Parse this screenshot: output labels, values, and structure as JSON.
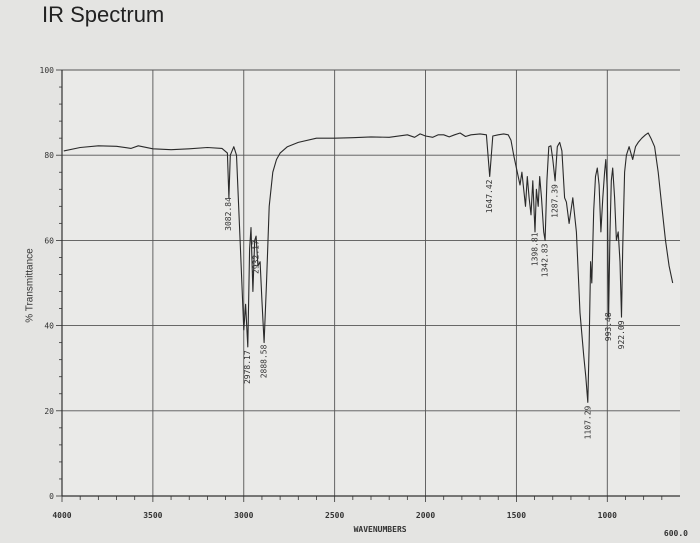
{
  "chart_data": {
    "type": "line",
    "title": "IR Spectrum",
    "xlabel": "WAVENUMBERS",
    "ylabel": "% Transmittance",
    "x_reversed": true,
    "xlim": [
      4000,
      600
    ],
    "ylim": [
      0,
      100
    ],
    "x_ticks": [
      {
        "value": 4000,
        "label": "4000"
      },
      {
        "value": 3500,
        "label": "3500"
      },
      {
        "value": 3000,
        "label": "3000"
      },
      {
        "value": 2500,
        "label": "2500"
      },
      {
        "value": 2000,
        "label": "2000"
      },
      {
        "value": 1500,
        "label": "1500"
      },
      {
        "value": 1000,
        "label": "1000"
      }
    ],
    "x_end_label": "600.0",
    "y_ticks": [
      {
        "value": 0,
        "label": "0"
      },
      {
        "value": 20,
        "label": "20"
      },
      {
        "value": 40,
        "label": "40"
      },
      {
        "value": 60,
        "label": "60"
      },
      {
        "value": 80,
        "label": "80"
      },
      {
        "value": 100,
        "label": "100"
      }
    ],
    "grid": true,
    "series": [
      {
        "points": [
          [
            3990,
            81
          ],
          [
            3900,
            81.8
          ],
          [
            3800,
            82.2
          ],
          [
            3700,
            82.1
          ],
          [
            3620,
            81.6
          ],
          [
            3580,
            82.2
          ],
          [
            3500,
            81.5
          ],
          [
            3400,
            81.3
          ],
          [
            3300,
            81.5
          ],
          [
            3200,
            81.8
          ],
          [
            3120,
            81.6
          ],
          [
            3090,
            80.5
          ],
          [
            3082,
            70
          ],
          [
            3074,
            80
          ],
          [
            3055,
            82
          ],
          [
            3040,
            80
          ],
          [
            3020,
            60
          ],
          [
            3000,
            39
          ],
          [
            2990,
            45
          ],
          [
            2978,
            35
          ],
          [
            2968,
            58
          ],
          [
            2960,
            63
          ],
          [
            2950,
            48
          ],
          [
            2940,
            60
          ],
          [
            2932,
            61
          ],
          [
            2922,
            54
          ],
          [
            2910,
            55
          ],
          [
            2900,
            46
          ],
          [
            2888,
            36
          ],
          [
            2875,
            50
          ],
          [
            2860,
            68
          ],
          [
            2840,
            76
          ],
          [
            2820,
            79
          ],
          [
            2800,
            80.5
          ],
          [
            2760,
            82
          ],
          [
            2700,
            83
          ],
          [
            2600,
            84
          ],
          [
            2500,
            84
          ],
          [
            2400,
            84.1
          ],
          [
            2300,
            84.3
          ],
          [
            2200,
            84.2
          ],
          [
            2100,
            84.8
          ],
          [
            2060,
            84.2
          ],
          [
            2030,
            85
          ],
          [
            2000,
            84.5
          ],
          [
            1960,
            84.2
          ],
          [
            1930,
            84.8
          ],
          [
            1900,
            84.8
          ],
          [
            1870,
            84.3
          ],
          [
            1840,
            84.8
          ],
          [
            1810,
            85.2
          ],
          [
            1780,
            84.4
          ],
          [
            1750,
            84.8
          ],
          [
            1700,
            85
          ],
          [
            1665,
            84.8
          ],
          [
            1647,
            75
          ],
          [
            1630,
            84.5
          ],
          [
            1600,
            84.8
          ],
          [
            1570,
            85
          ],
          [
            1545,
            84.8
          ],
          [
            1530,
            83.5
          ],
          [
            1515,
            80
          ],
          [
            1505,
            78
          ],
          [
            1495,
            76
          ],
          [
            1480,
            73
          ],
          [
            1470,
            76
          ],
          [
            1460,
            72
          ],
          [
            1450,
            68
          ],
          [
            1440,
            75
          ],
          [
            1430,
            70
          ],
          [
            1420,
            66
          ],
          [
            1410,
            74
          ],
          [
            1398,
            62
          ],
          [
            1390,
            72
          ],
          [
            1380,
            68
          ],
          [
            1372,
            75
          ],
          [
            1362,
            70
          ],
          [
            1350,
            62
          ],
          [
            1342,
            60
          ],
          [
            1332,
            74
          ],
          [
            1322,
            82
          ],
          [
            1310,
            82.2
          ],
          [
            1300,
            79
          ],
          [
            1287,
            74
          ],
          [
            1275,
            82
          ],
          [
            1262,
            83
          ],
          [
            1250,
            81
          ],
          [
            1235,
            70
          ],
          [
            1225,
            69
          ],
          [
            1210,
            64
          ],
          [
            1190,
            70
          ],
          [
            1170,
            62
          ],
          [
            1150,
            43
          ],
          [
            1130,
            33
          ],
          [
            1118,
            28
          ],
          [
            1107,
            22
          ],
          [
            1100,
            35
          ],
          [
            1092,
            55
          ],
          [
            1085,
            50
          ],
          [
            1075,
            67
          ],
          [
            1065,
            75
          ],
          [
            1055,
            77
          ],
          [
            1045,
            73
          ],
          [
            1035,
            62
          ],
          [
            1025,
            70
          ],
          [
            1015,
            76
          ],
          [
            1008,
            79
          ],
          [
            1000,
            72
          ],
          [
            993,
            42
          ],
          [
            985,
            62
          ],
          [
            978,
            74
          ],
          [
            970,
            77
          ],
          [
            960,
            70
          ],
          [
            950,
            60
          ],
          [
            940,
            62
          ],
          [
            930,
            55
          ],
          [
            922,
            42
          ],
          [
            915,
            58
          ],
          [
            905,
            76
          ],
          [
            895,
            80
          ],
          [
            880,
            82
          ],
          [
            860,
            79
          ],
          [
            845,
            82
          ],
          [
            830,
            83
          ],
          [
            810,
            84
          ],
          [
            790,
            84.8
          ],
          [
            775,
            85.2
          ],
          [
            760,
            84
          ],
          [
            740,
            82
          ],
          [
            720,
            76
          ],
          [
            700,
            68
          ],
          [
            680,
            60
          ],
          [
            660,
            54
          ],
          [
            640,
            50
          ]
        ]
      }
    ],
    "annotations": [
      {
        "x": 3082.84,
        "label": "3082.84"
      },
      {
        "x": 2978.17,
        "label": "2978.17"
      },
      {
        "x": 2932.17,
        "label": "2932.17"
      },
      {
        "x": 2888.58,
        "label": "2888.58"
      },
      {
        "x": 1647.42,
        "label": "1647.42"
      },
      {
        "x": 1398.81,
        "label": "1398.81"
      },
      {
        "x": 1342.83,
        "label": "1342.83"
      },
      {
        "x": 1287.39,
        "label": "1287.39"
      },
      {
        "x": 1107.29,
        "label": "1107.29"
      },
      {
        "x": 993.48,
        "label": "993.48"
      },
      {
        "x": 922.09,
        "label": "922.09"
      }
    ]
  }
}
